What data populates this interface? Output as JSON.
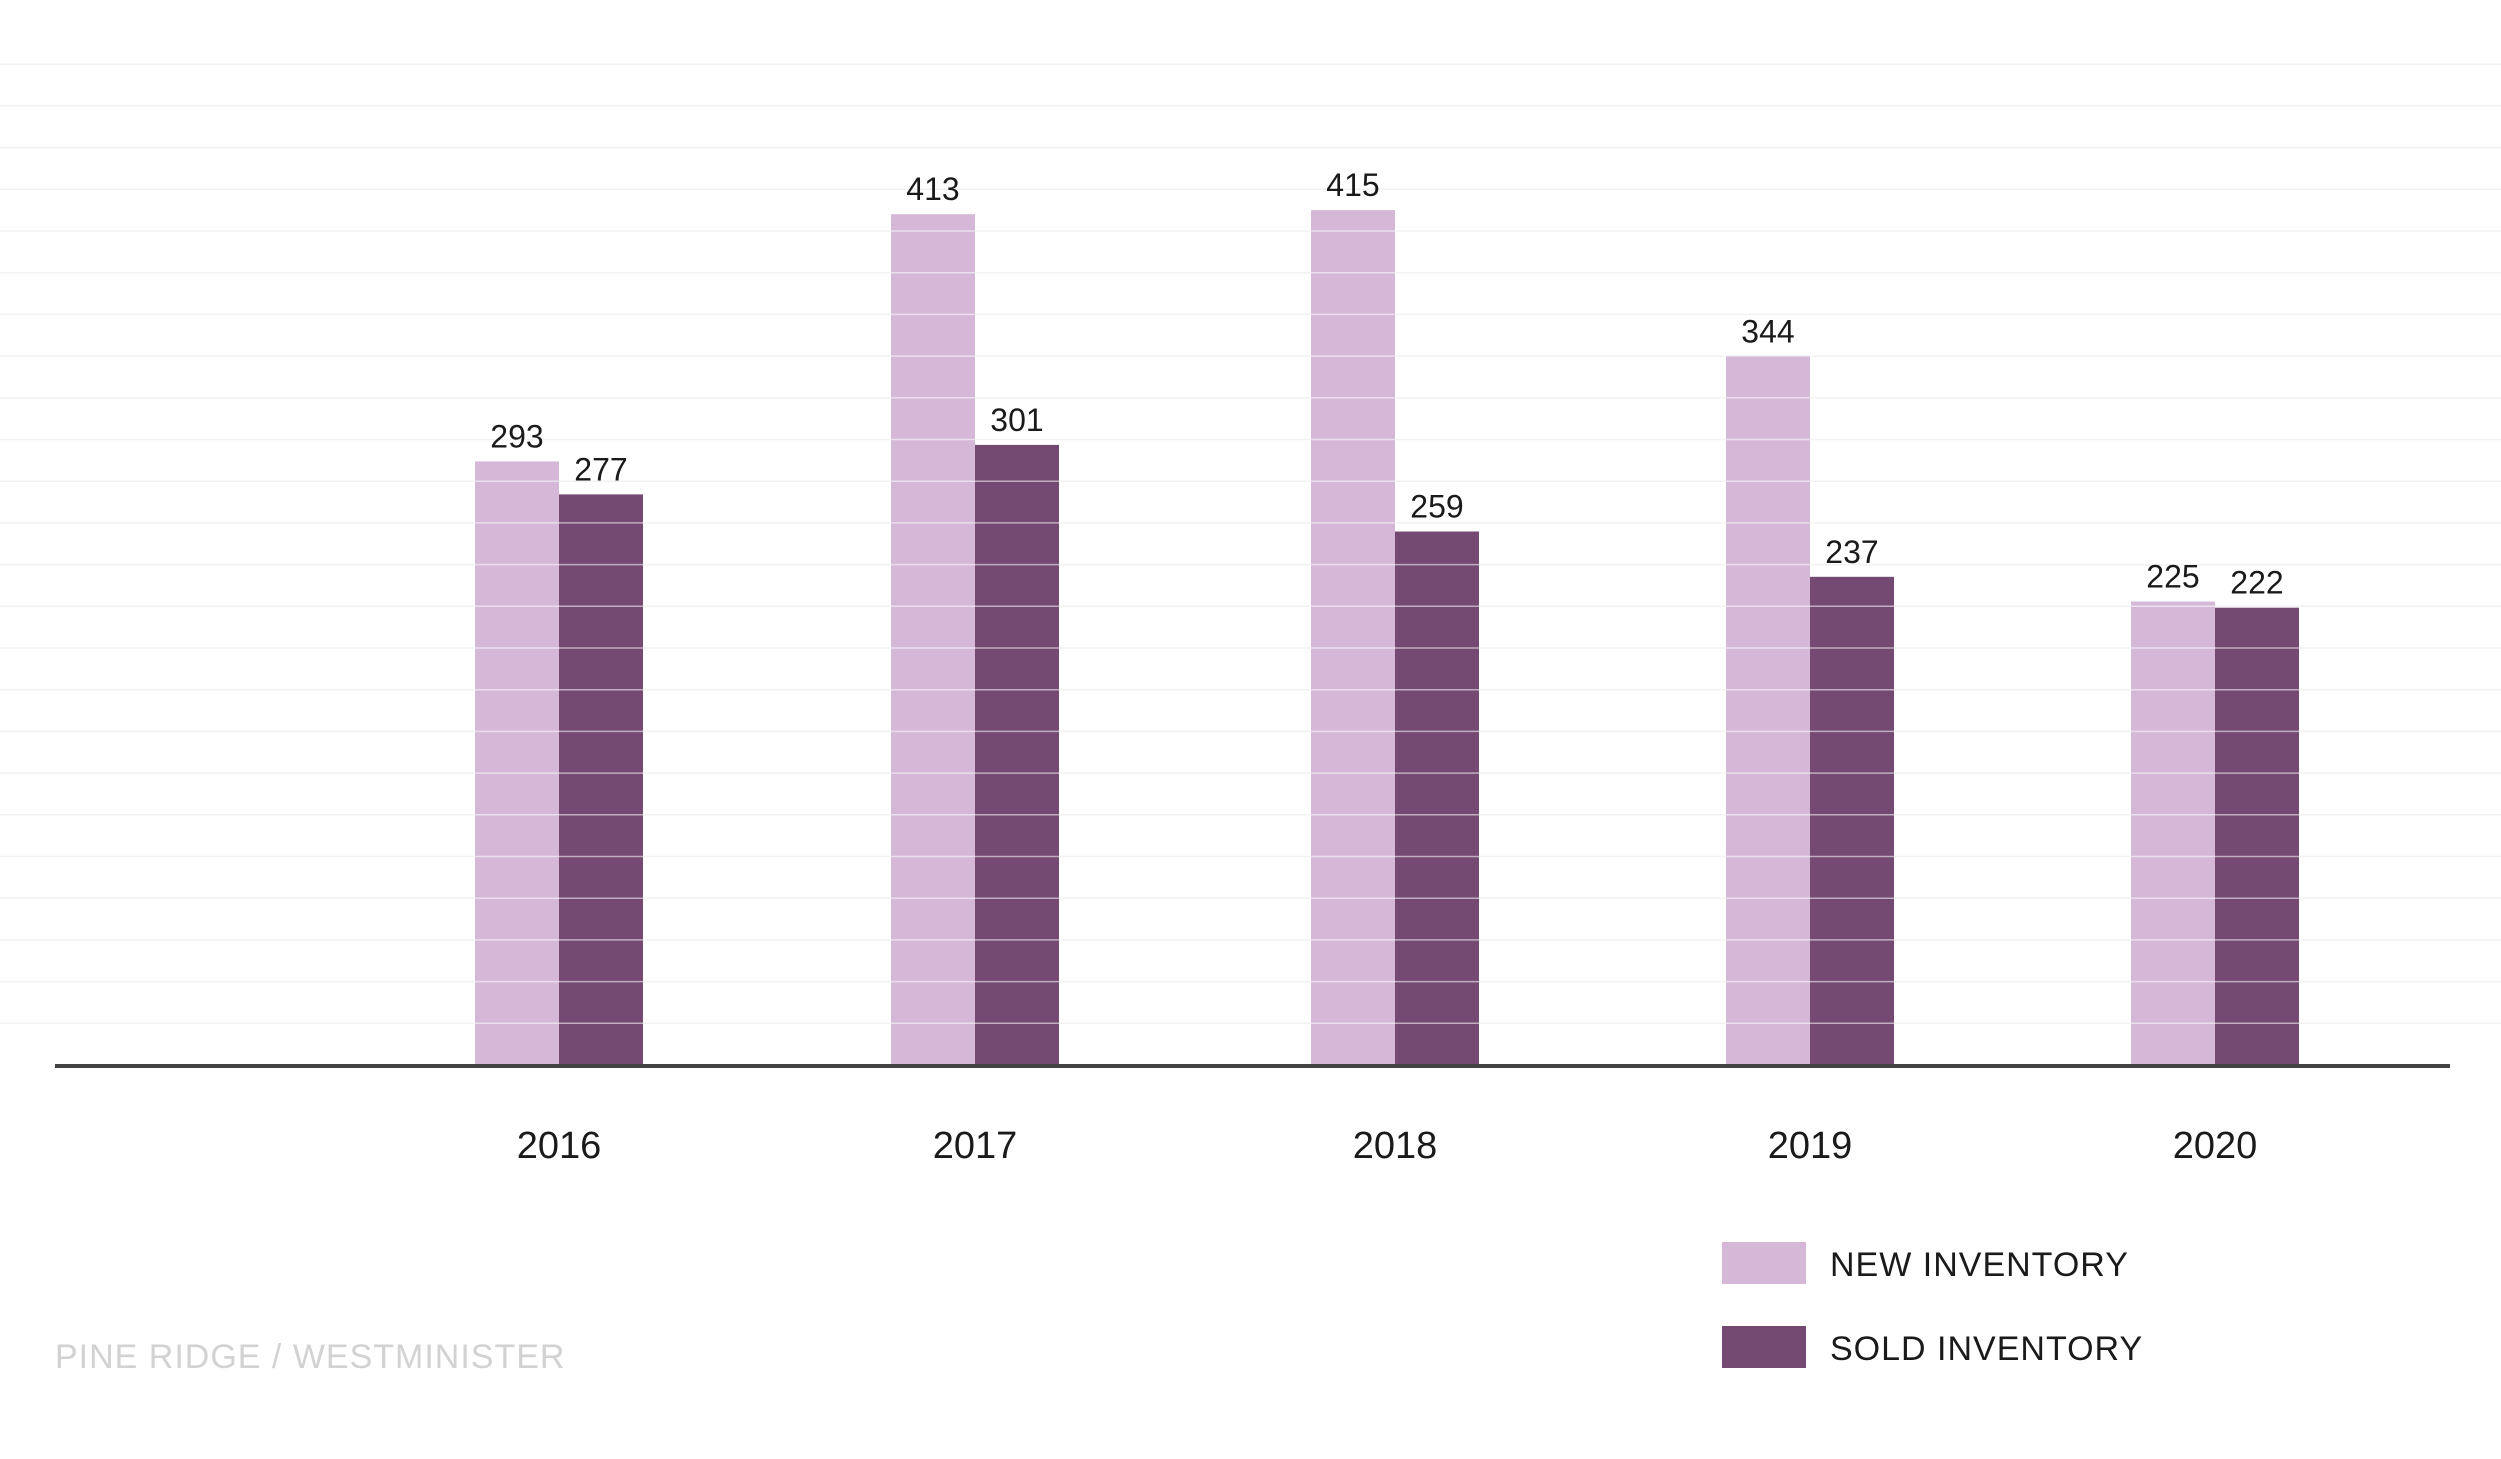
{
  "chart_data": {
    "type": "bar",
    "categories": [
      "2016",
      "2017",
      "2018",
      "2019",
      "2020"
    ],
    "series": [
      {
        "name": "NEW INVENTORY",
        "values": [
          293,
          413,
          415,
          344,
          225
        ],
        "color": "#d5b8d8"
      },
      {
        "name": "SOLD INVENTORY",
        "values": [
          277,
          301,
          259,
          237,
          222
        ],
        "color": "#744a72"
      }
    ],
    "title": "",
    "xlabel": "",
    "ylabel": "",
    "ylim": [
      0,
      480
    ],
    "grid": true,
    "legend": "bottom-right",
    "data_labels": true
  },
  "footer": {
    "watermark": "PINE RIDGE / WESTMINISTER"
  },
  "colors": {
    "axis": "#444444",
    "grid": "#f2f2f2",
    "watermark": "#d2d2d2"
  }
}
